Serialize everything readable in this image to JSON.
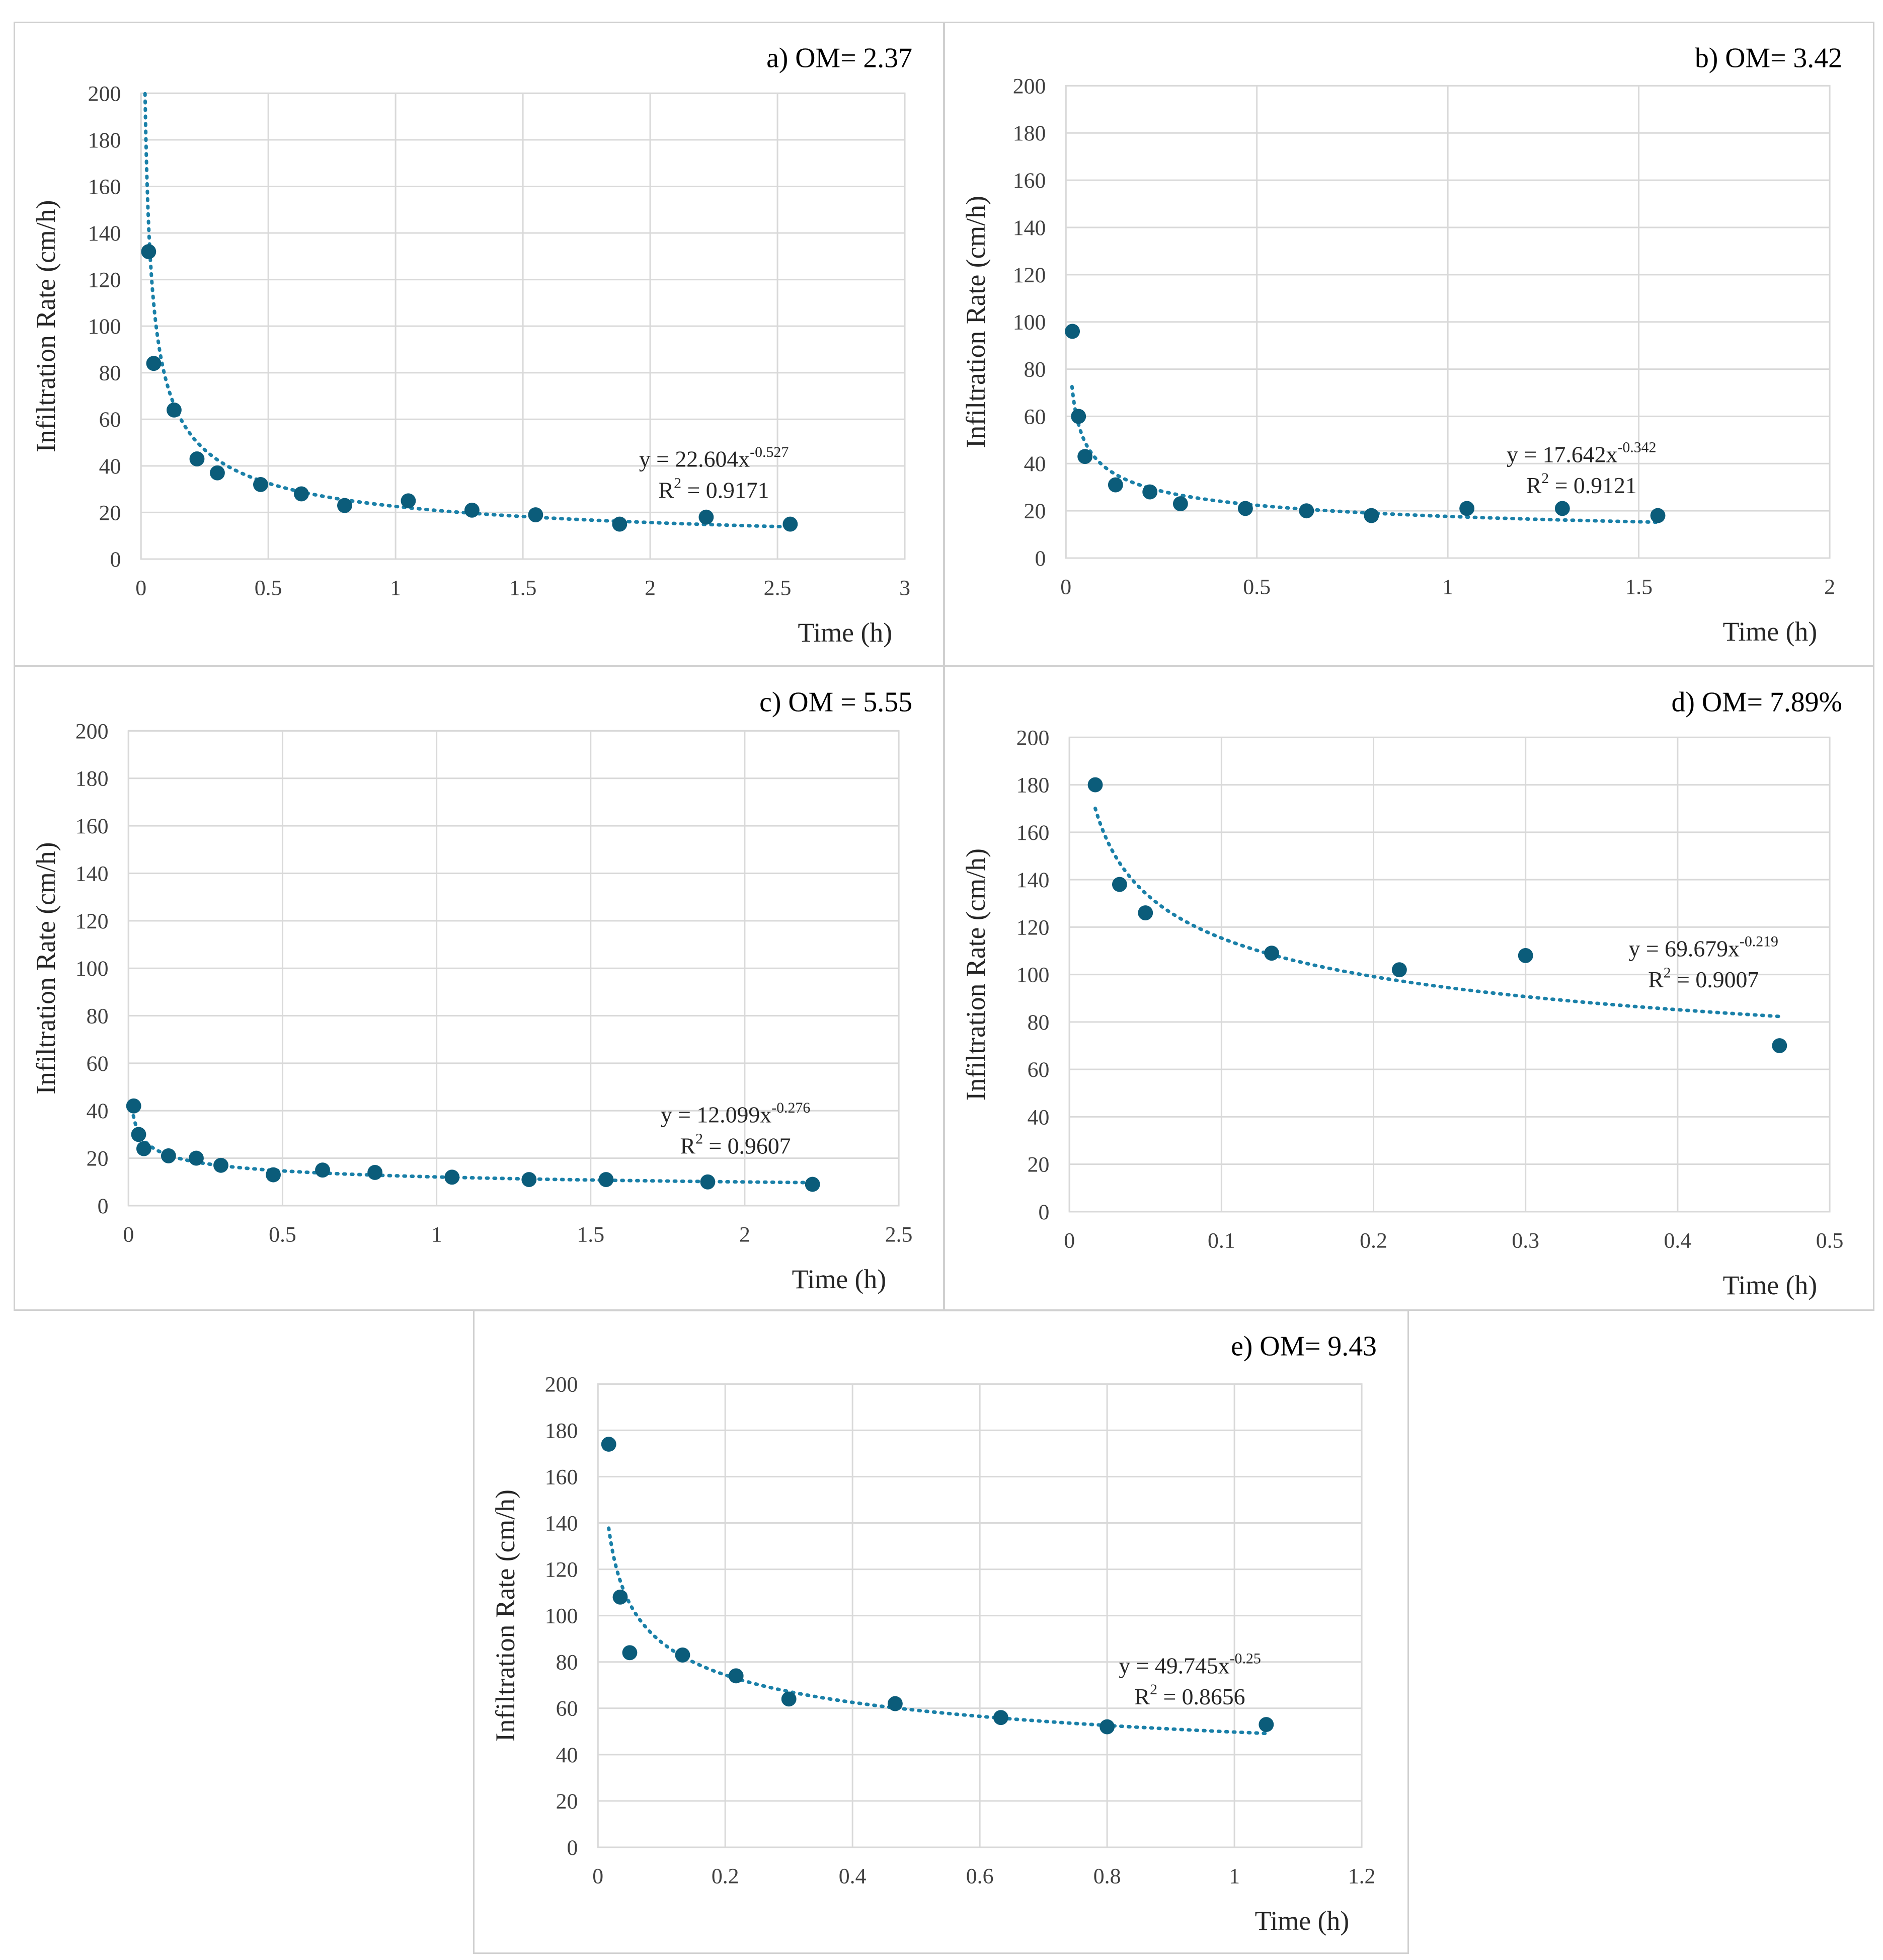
{
  "colors": {
    "marker": "#0b5c7a",
    "trend": "#1a80a8"
  },
  "chart_data": [
    {
      "type": "scatter",
      "title": "a) OM= 2.37",
      "xlabel": "Time (h)",
      "ylabel": "Infiltration Rate (cm/h)",
      "xlim": [
        0,
        3
      ],
      "ylim": [
        0,
        200
      ],
      "xticks": [
        0,
        0.5,
        1,
        1.5,
        2,
        2.5,
        3
      ],
      "xtick_labels": [
        "0",
        "0.5",
        "1",
        "1.5",
        "2",
        "2.5",
        "3"
      ],
      "yticks": [
        0,
        20,
        40,
        60,
        80,
        100,
        120,
        140,
        160,
        180,
        200
      ],
      "ytick_labels": [
        "0",
        "20",
        "40",
        "60",
        "80",
        "100",
        "120",
        "140",
        "160",
        "180",
        "200"
      ],
      "x": [
        0.03,
        0.05,
        0.13,
        0.22,
        0.3,
        0.47,
        0.63,
        0.8,
        1.05,
        1.3,
        1.55,
        1.88,
        2.22,
        2.55
      ],
      "y": [
        132,
        84,
        64,
        43,
        37,
        32,
        28,
        23,
        25,
        21,
        19,
        15,
        18,
        15
      ],
      "trendline": {
        "a": 22.604,
        "b": -0.527,
        "x_start": 0.016,
        "x_end": 2.55
      },
      "equation": {
        "prefix": "y = 22.604x",
        "exponent": "-0.527"
      },
      "r2": {
        "prefix": "R",
        "sup": "2",
        "suffix": " = 0.9171"
      }
    },
    {
      "type": "scatter",
      "title": "b) OM= 3.42",
      "xlabel": "Time (h)",
      "ylabel": "Infiltration Rate (cm/h)",
      "xlim": [
        0,
        2
      ],
      "ylim": [
        0,
        200
      ],
      "xticks": [
        0,
        0.5,
        1,
        1.5,
        2
      ],
      "xtick_labels": [
        "0",
        "0.5",
        "1",
        "1.5",
        "2"
      ],
      "yticks": [
        0,
        20,
        40,
        60,
        80,
        100,
        120,
        140,
        160,
        180,
        200
      ],
      "ytick_labels": [
        "0",
        "20",
        "40",
        "60",
        "80",
        "100",
        "120",
        "140",
        "160",
        "180",
        "200"
      ],
      "x": [
        0.017,
        0.033,
        0.05,
        0.13,
        0.22,
        0.3,
        0.47,
        0.63,
        0.8,
        1.05,
        1.3,
        1.55
      ],
      "y": [
        96,
        60,
        43,
        31,
        28,
        23,
        21,
        20,
        18,
        21,
        21,
        18
      ],
      "trendline": {
        "a": 17.642,
        "b": -0.342,
        "x_start": 0.016,
        "x_end": 1.55
      },
      "equation": {
        "prefix": "y = 17.642x",
        "exponent": "-0.342"
      },
      "r2": {
        "prefix": "R",
        "sup": "2",
        "suffix": " = 0.9121"
      }
    },
    {
      "type": "scatter",
      "title": "c) OM = 5.55",
      "xlabel": "Time (h)",
      "ylabel": "Infiltration Rate (cm/h)",
      "xlim": [
        0,
        2.5
      ],
      "ylim": [
        0,
        200
      ],
      "xticks": [
        0,
        0.5,
        1,
        1.5,
        2,
        2.5
      ],
      "xtick_labels": [
        "0",
        "0.5",
        "1",
        "1.5",
        "2",
        "2.5"
      ],
      "yticks": [
        0,
        20,
        40,
        60,
        80,
        100,
        120,
        140,
        160,
        180,
        200
      ],
      "ytick_labels": [
        "0",
        "20",
        "40",
        "60",
        "80",
        "100",
        "120",
        "140",
        "160",
        "180",
        "200"
      ],
      "x": [
        0.017,
        0.033,
        0.05,
        0.13,
        0.22,
        0.3,
        0.47,
        0.63,
        0.8,
        1.05,
        1.3,
        1.55,
        1.88,
        2.22
      ],
      "y": [
        42,
        30,
        24,
        21,
        20,
        17,
        13,
        15,
        14,
        12,
        11,
        11,
        10,
        9
      ],
      "trendline": {
        "a": 12.099,
        "b": -0.276,
        "x_start": 0.016,
        "x_end": 2.22
      },
      "equation": {
        "prefix": "y = 12.099x",
        "exponent": "-0.276"
      },
      "r2": {
        "prefix": "R",
        "sup": "2",
        "suffix": " = 0.9607"
      }
    },
    {
      "type": "scatter",
      "title": "d) OM= 7.89%",
      "xlabel": "Time (h)",
      "ylabel": "Infiltration Rate (cm/h)",
      "xlim": [
        0,
        0.5
      ],
      "ylim": [
        0,
        200
      ],
      "xticks": [
        0,
        0.1,
        0.2,
        0.3,
        0.4,
        0.5
      ],
      "xtick_labels": [
        "0",
        "0.1",
        "0.2",
        "0.3",
        "0.4",
        "0.5"
      ],
      "yticks": [
        0,
        20,
        40,
        60,
        80,
        100,
        120,
        140,
        160,
        180,
        200
      ],
      "ytick_labels": [
        "0",
        "20",
        "40",
        "60",
        "80",
        "100",
        "120",
        "140",
        "160",
        "180",
        "200"
      ],
      "x": [
        0.017,
        0.033,
        0.05,
        0.133,
        0.217,
        0.3,
        0.467
      ],
      "y": [
        180,
        138,
        126,
        109,
        102,
        108,
        70
      ],
      "trendline": {
        "a": 69.679,
        "b": -0.219,
        "x_start": 0.017,
        "x_end": 0.467
      },
      "equation": {
        "prefix": "y = 69.679x",
        "exponent": "-0.219"
      },
      "r2": {
        "prefix": "R",
        "sup": "2",
        "suffix": " = 0.9007"
      }
    },
    {
      "type": "scatter",
      "title": "e) OM= 9.43",
      "xlabel": "Time (h)",
      "ylabel": "Infiltration Rate (cm/h)",
      "xlim": [
        0,
        1.2
      ],
      "ylim": [
        0,
        200
      ],
      "xticks": [
        0,
        0.2,
        0.4,
        0.6,
        0.8,
        1,
        1.2
      ],
      "xtick_labels": [
        "0",
        "0.2",
        "0.4",
        "0.6",
        "0.8",
        "1",
        "1.2"
      ],
      "yticks": [
        0,
        20,
        40,
        60,
        80,
        100,
        120,
        140,
        160,
        180,
        200
      ],
      "ytick_labels": [
        "0",
        "20",
        "40",
        "60",
        "80",
        "100",
        "120",
        "140",
        "160",
        "180",
        "200"
      ],
      "x": [
        0.017,
        0.035,
        0.05,
        0.133,
        0.217,
        0.3,
        0.467,
        0.633,
        0.8,
        1.05
      ],
      "y": [
        174,
        108,
        84,
        83,
        74,
        64,
        62,
        56,
        52,
        53
      ],
      "trendline": {
        "a": 49.745,
        "b": -0.25,
        "x_start": 0.017,
        "x_end": 1.05
      },
      "equation": {
        "prefix": "y = 49.745x",
        "exponent": "-0.25"
      },
      "r2": {
        "prefix": "R",
        "sup": "2",
        "suffix": " = 0.8656"
      }
    }
  ]
}
